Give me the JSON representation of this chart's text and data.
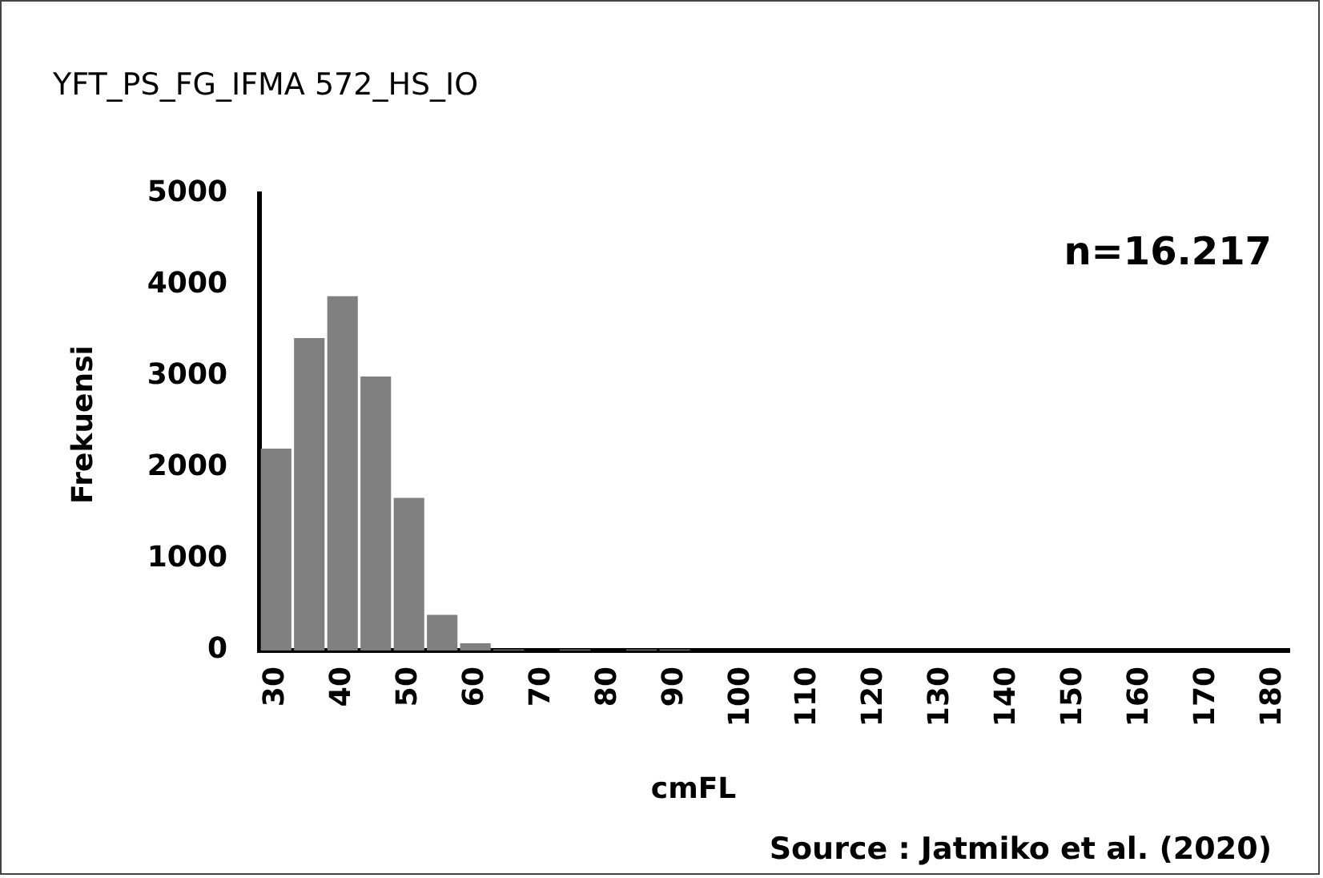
{
  "chart_data": {
    "type": "bar",
    "title": "YFT_PS_FG_IFMA 572_HS_IO",
    "xlabel": "cmFL",
    "ylabel": "Frekuensi",
    "categories": [
      "30",
      null,
      "40",
      null,
      "50",
      null,
      "60",
      null,
      "70",
      null,
      "80",
      null,
      "90",
      null,
      "100",
      null,
      "110",
      null,
      "120",
      null,
      "130",
      null,
      "140",
      null,
      "150",
      null,
      "160",
      null,
      "170",
      null,
      "180"
    ],
    "values": [
      2210,
      3420,
      3880,
      3000,
      1670,
      390,
      80,
      10,
      0,
      10,
      0,
      10,
      10,
      0,
      0,
      0,
      0,
      0,
      0,
      0,
      0,
      0,
      0,
      0,
      0,
      0,
      0,
      0,
      0,
      0,
      0
    ],
    "color": "#808080",
    "ylim": [
      0,
      5000
    ],
    "yticks": [
      0,
      1000,
      2000,
      3000,
      4000,
      5000
    ],
    "grid": false,
    "legend": false,
    "annotations": [
      "n=16.217",
      "Source : Jatmiko et al. (2020)"
    ]
  }
}
